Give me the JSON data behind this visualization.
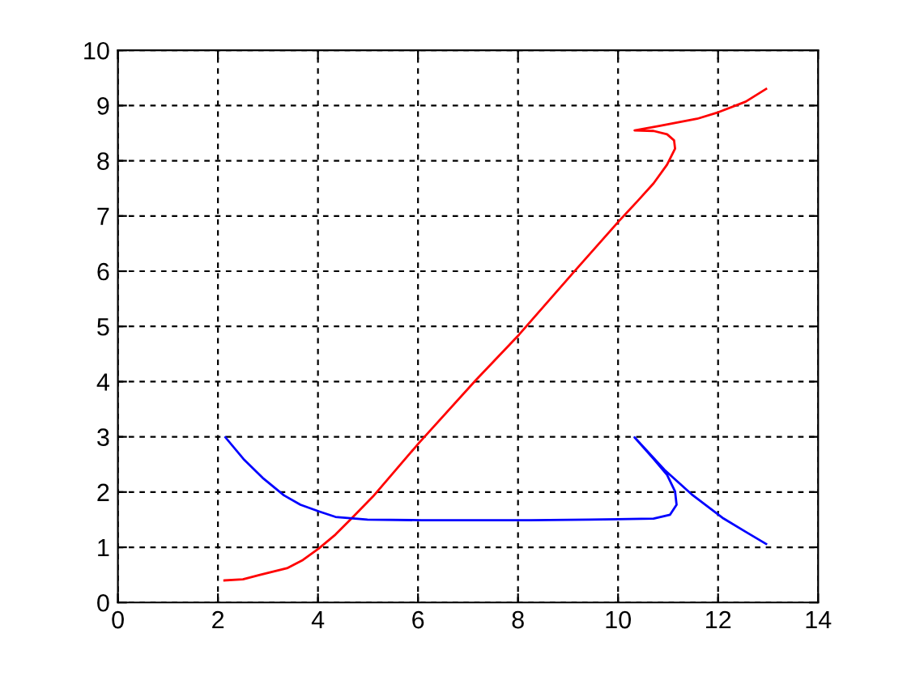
{
  "chart_data": {
    "type": "line",
    "xlim": [
      0,
      14
    ],
    "ylim": [
      0,
      10
    ],
    "xticks": [
      0,
      2,
      4,
      6,
      8,
      10,
      12,
      14
    ],
    "yticks": [
      0,
      1,
      2,
      3,
      4,
      5,
      6,
      7,
      8,
      9,
      10
    ],
    "grid": true,
    "line_style": "solid",
    "marker": "none",
    "series": [
      {
        "color": "#ff0000",
        "x": [
          2.13,
          2.5,
          2.84,
          3.38,
          3.7,
          4.02,
          4.35,
          4.67,
          5.1,
          6.02,
          7.15,
          8.02,
          9.15,
          10.01,
          10.39,
          10.71,
          10.98,
          11.14,
          11.12,
          10.98,
          10.71,
          10.33,
          10.82,
          11.58,
          12.01,
          12.55,
          12.96
        ],
        "values": [
          0.4,
          0.42,
          0.5,
          0.62,
          0.77,
          0.98,
          1.23,
          1.52,
          1.92,
          2.89,
          4.02,
          4.85,
          6.02,
          6.9,
          7.27,
          7.59,
          7.93,
          8.22,
          8.37,
          8.48,
          8.54,
          8.55,
          8.63,
          8.76,
          8.88,
          9.07,
          9.3
        ]
      },
      {
        "color": "#0000ff",
        "x": [
          2.15,
          2.51,
          2.89,
          3.32,
          3.65,
          4.02,
          4.35,
          4.99,
          6.07,
          8.23,
          9.42,
          10.71,
          11.04,
          11.17,
          11.14,
          10.98,
          10.71,
          10.33,
          10.93,
          11.47,
          12.11,
          12.55,
          12.96
        ],
        "values": [
          2.99,
          2.6,
          2.26,
          1.94,
          1.77,
          1.65,
          1.55,
          1.5,
          1.49,
          1.49,
          1.5,
          1.52,
          1.59,
          1.77,
          2.01,
          2.31,
          2.6,
          2.99,
          2.4,
          1.96,
          1.52,
          1.28,
          1.06
        ]
      }
    ]
  }
}
